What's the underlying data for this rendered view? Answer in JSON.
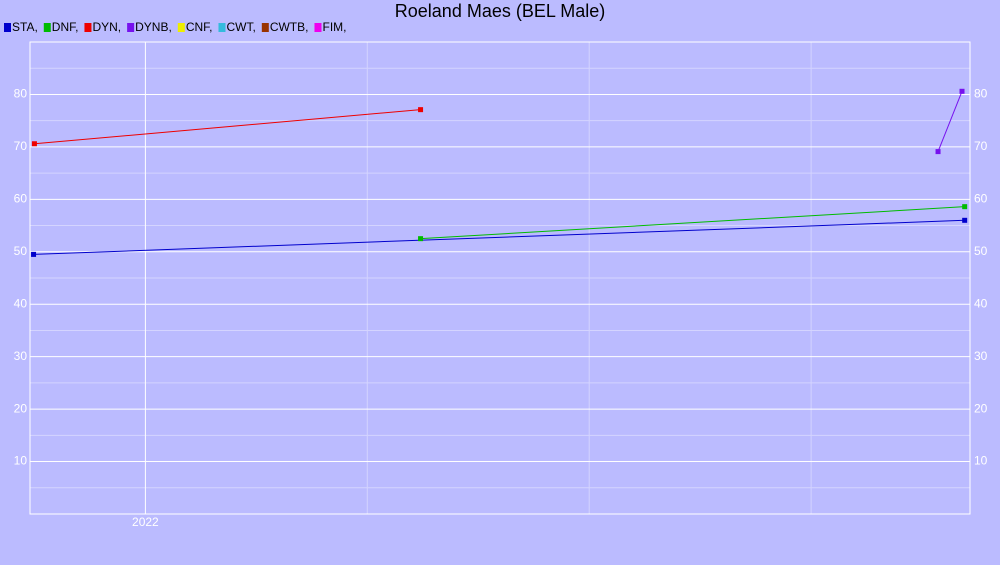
{
  "chart_data": {
    "type": "line",
    "title": "Roeland Maes (BEL Male)",
    "legend": "top-left",
    "grid": true,
    "xlim": [
      2021.87,
      2022.929
    ],
    "xticks": [
      2022
    ],
    "xticks_minor": [
      2022.25,
      2022.5,
      2022.75
    ],
    "ylim": [
      0,
      90
    ],
    "yticks": [
      10,
      20,
      30,
      40,
      50,
      60,
      70,
      80
    ],
    "yticks_minor": [
      5,
      15,
      25,
      35,
      45,
      55,
      65,
      75,
      85
    ],
    "series": [
      {
        "name": "STA,",
        "color": "#0000cc",
        "x": [
          2021.874,
          2022.923
        ],
        "values": [
          49.5,
          56.0
        ]
      },
      {
        "name": "DNF,",
        "color": "#00bb00",
        "x": [
          2022.31,
          2022.923
        ],
        "values": [
          52.5,
          58.6
        ]
      },
      {
        "name": "DYN,",
        "color": "#ee0000",
        "x": [
          2021.875,
          2022.31
        ],
        "values": [
          70.6,
          77.1
        ]
      },
      {
        "name": "DYNB,",
        "color": "#7711ee",
        "x": [
          2022.893,
          2022.92
        ],
        "values": [
          69.1,
          80.6
        ]
      },
      {
        "name": "CNF,",
        "color": "#eeee00",
        "x": [],
        "values": []
      },
      {
        "name": "CWT,",
        "color": "#33bbdd",
        "x": [],
        "values": []
      },
      {
        "name": "CWTB,",
        "color": "#993300",
        "x": [],
        "values": []
      },
      {
        "name": "FIM,",
        "color": "#ee00ee",
        "x": [],
        "values": []
      }
    ]
  }
}
